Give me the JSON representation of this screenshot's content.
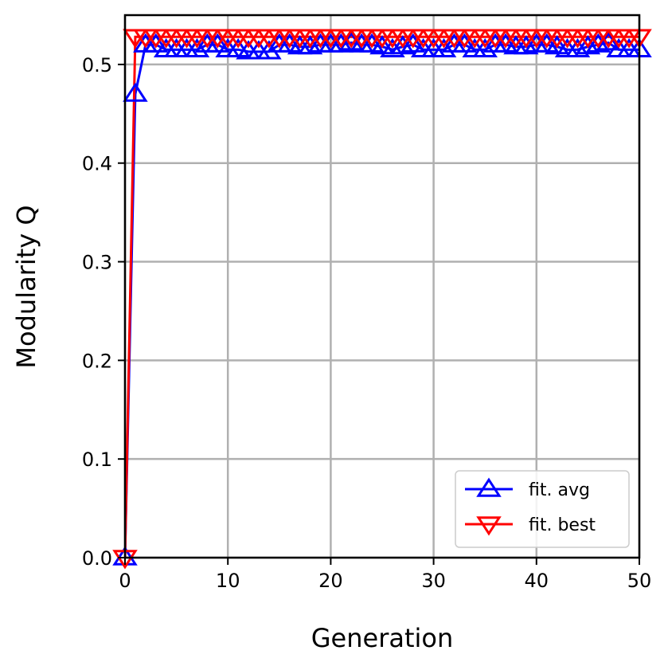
{
  "chart_data": {
    "type": "line",
    "xlabel": "Generation",
    "ylabel": "Modularity Q",
    "xlim": [
      0,
      50
    ],
    "ylim": [
      0,
      0.55
    ],
    "xticks": [
      0,
      10,
      20,
      30,
      40,
      50
    ],
    "xtick_labels": [
      "0",
      "10",
      "20",
      "30",
      "40",
      "50"
    ],
    "yticks": [
      0.0,
      0.1,
      0.2,
      0.3,
      0.4,
      0.5
    ],
    "ytick_labels": [
      "0.0",
      "0.1",
      "0.2",
      "0.3",
      "0.4",
      "0.5"
    ],
    "grid": true,
    "legend_position": "lower-right",
    "x": [
      0,
      1,
      2,
      3,
      4,
      5,
      6,
      7,
      8,
      9,
      10,
      11,
      12,
      13,
      14,
      15,
      16,
      17,
      18,
      19,
      20,
      21,
      22,
      23,
      24,
      25,
      26,
      27,
      28,
      29,
      30,
      31,
      32,
      33,
      34,
      35,
      36,
      37,
      38,
      39,
      40,
      41,
      42,
      43,
      44,
      45,
      46,
      47,
      48,
      49,
      50
    ],
    "series": [
      {
        "name": "fit. avg",
        "color": "#0000ff",
        "marker": "triangle-up",
        "values": [
          0.0,
          0.47,
          0.52,
          0.52,
          0.515,
          0.515,
          0.515,
          0.515,
          0.52,
          0.52,
          0.515,
          0.515,
          0.513,
          0.513,
          0.513,
          0.52,
          0.52,
          0.518,
          0.518,
          0.52,
          0.52,
          0.52,
          0.522,
          0.52,
          0.52,
          0.518,
          0.515,
          0.518,
          0.52,
          0.515,
          0.515,
          0.515,
          0.52,
          0.52,
          0.515,
          0.515,
          0.52,
          0.52,
          0.518,
          0.518,
          0.52,
          0.52,
          0.518,
          0.515,
          0.515,
          0.518,
          0.52,
          0.522,
          0.515,
          0.515,
          0.515
        ]
      },
      {
        "name": "fit. best",
        "color": "#ff0000",
        "marker": "triangle-down",
        "values": [
          0.0,
          0.528,
          0.528,
          0.528,
          0.528,
          0.528,
          0.528,
          0.528,
          0.528,
          0.528,
          0.528,
          0.528,
          0.528,
          0.528,
          0.528,
          0.528,
          0.528,
          0.528,
          0.528,
          0.528,
          0.528,
          0.528,
          0.528,
          0.528,
          0.528,
          0.528,
          0.528,
          0.528,
          0.528,
          0.528,
          0.528,
          0.528,
          0.528,
          0.528,
          0.528,
          0.528,
          0.528,
          0.528,
          0.528,
          0.528,
          0.528,
          0.528,
          0.528,
          0.528,
          0.528,
          0.528,
          0.528,
          0.528,
          0.528,
          0.528,
          0.528
        ]
      }
    ]
  }
}
